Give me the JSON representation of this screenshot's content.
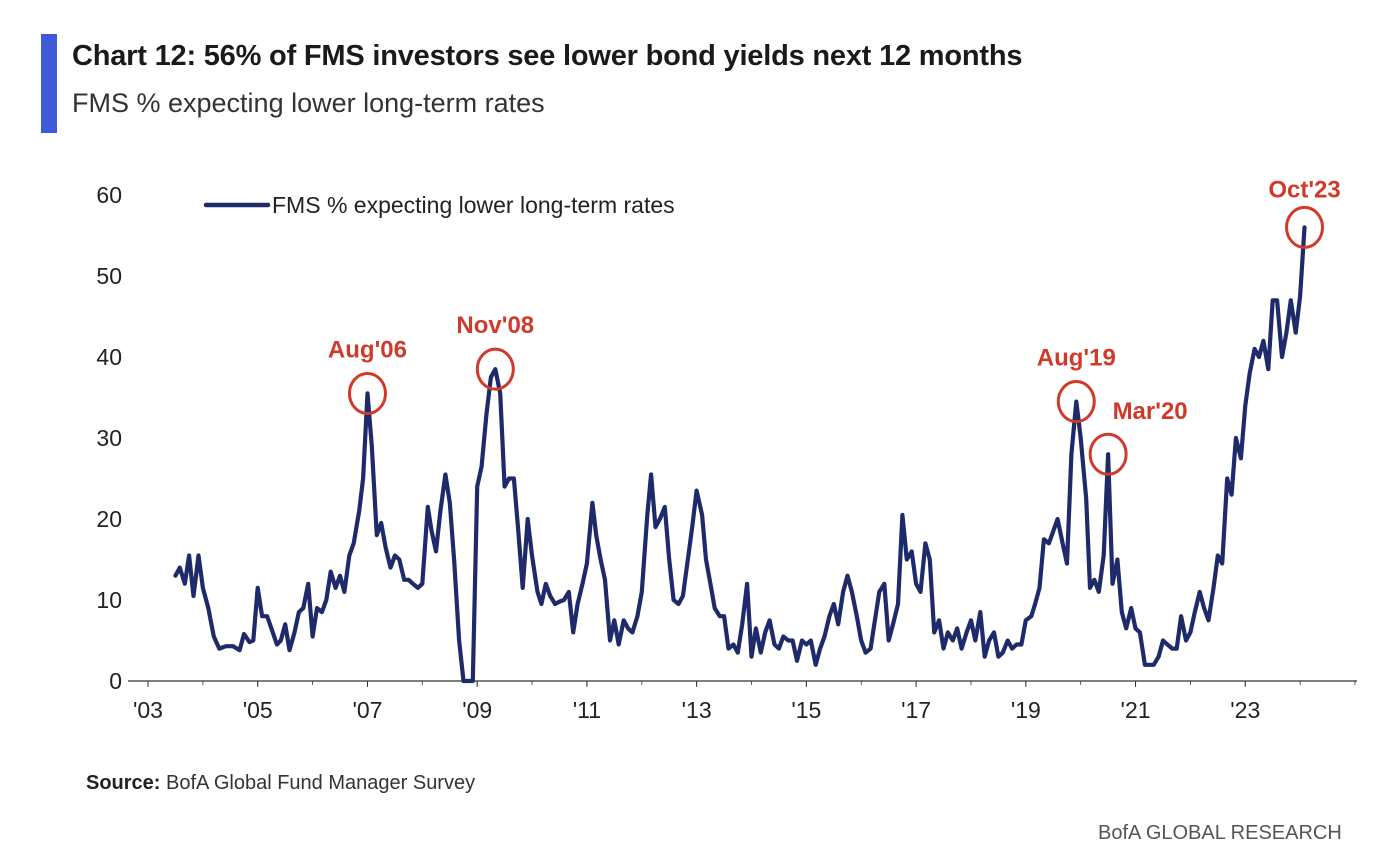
{
  "header": {
    "title": "Chart 12: 56% of FMS investors see lower bond yields next 12 months",
    "subtitle": "FMS % expecting lower long-term rates",
    "accent_color": "#3d5bd9"
  },
  "footer": {
    "source_label": "Source:",
    "source_text": "BofA Global Fund Manager Survey",
    "brand": "BofA GLOBAL RESEARCH"
  },
  "chart_data": {
    "type": "line",
    "title": "Chart 12: 56% of FMS investors see lower bond yields next 12 months",
    "xlabel": "",
    "ylabel": "",
    "xlim": [
      2003,
      2025
    ],
    "ylim": [
      0,
      60
    ],
    "y_ticks": [
      0,
      10,
      20,
      30,
      40,
      50,
      60
    ],
    "x_ticks": [
      {
        "value": 2003,
        "label": "'03"
      },
      {
        "value": 2005,
        "label": "'05"
      },
      {
        "value": 2007,
        "label": "'07"
      },
      {
        "value": 2009,
        "label": "'09"
      },
      {
        "value": 2011,
        "label": "'11"
      },
      {
        "value": 2013,
        "label": "'13"
      },
      {
        "value": 2015,
        "label": "'15"
      },
      {
        "value": 2017,
        "label": "'17"
      },
      {
        "value": 2019,
        "label": "'19"
      },
      {
        "value": 2021,
        "label": "'21"
      },
      {
        "value": 2023,
        "label": "'23"
      }
    ],
    "grid": false,
    "legend": {
      "position": "top-left",
      "entries": [
        "FMS % expecting lower long-term rates"
      ]
    },
    "series": [
      {
        "name": "FMS % expecting lower long-term rates",
        "color": "#1f2a6b",
        "points": [
          [
            2003.5,
            13
          ],
          [
            2003.58,
            14
          ],
          [
            2003.67,
            12
          ],
          [
            2003.75,
            15.5
          ],
          [
            2003.83,
            10.5
          ],
          [
            2003.92,
            15.5
          ],
          [
            2004.0,
            11.5
          ],
          [
            2004.1,
            9
          ],
          [
            2004.2,
            5.5
          ],
          [
            2004.3,
            4
          ],
          [
            2004.42,
            4.3
          ],
          [
            2004.55,
            4.3
          ],
          [
            2004.67,
            3.8
          ],
          [
            2004.75,
            5.8
          ],
          [
            2004.85,
            4.8
          ],
          [
            2004.92,
            5
          ],
          [
            2005.0,
            11.5
          ],
          [
            2005.08,
            8
          ],
          [
            2005.17,
            8
          ],
          [
            2005.25,
            6.5
          ],
          [
            2005.35,
            4.5
          ],
          [
            2005.42,
            5
          ],
          [
            2005.5,
            7
          ],
          [
            2005.58,
            3.8
          ],
          [
            2005.67,
            6
          ],
          [
            2005.75,
            8.5
          ],
          [
            2005.83,
            9
          ],
          [
            2005.92,
            12
          ],
          [
            2006.0,
            5.5
          ],
          [
            2006.08,
            9
          ],
          [
            2006.17,
            8.5
          ],
          [
            2006.25,
            10
          ],
          [
            2006.33,
            13.5
          ],
          [
            2006.42,
            11.5
          ],
          [
            2006.5,
            13
          ],
          [
            2006.58,
            11
          ],
          [
            2006.67,
            15.5
          ],
          [
            2006.75,
            17
          ],
          [
            2006.85,
            21
          ],
          [
            2006.92,
            25
          ],
          [
            2007.0,
            35.5
          ],
          [
            2007.08,
            29
          ],
          [
            2007.17,
            18
          ],
          [
            2007.25,
            19.5
          ],
          [
            2007.33,
            16.5
          ],
          [
            2007.42,
            14
          ],
          [
            2007.5,
            15.5
          ],
          [
            2007.58,
            15
          ],
          [
            2007.67,
            12.5
          ],
          [
            2007.75,
            12.5
          ],
          [
            2007.83,
            12
          ],
          [
            2007.92,
            11.5
          ],
          [
            2008.0,
            12
          ],
          [
            2008.1,
            21.5
          ],
          [
            2008.17,
            18.5
          ],
          [
            2008.25,
            16
          ],
          [
            2008.33,
            21
          ],
          [
            2008.42,
            25.5
          ],
          [
            2008.5,
            22
          ],
          [
            2008.58,
            15
          ],
          [
            2008.67,
            5
          ],
          [
            2008.75,
            0
          ],
          [
            2008.83,
            0
          ],
          [
            2008.92,
            0
          ],
          [
            2009.0,
            24
          ],
          [
            2009.08,
            26.5
          ],
          [
            2009.17,
            33
          ],
          [
            2009.25,
            37.5
          ],
          [
            2009.33,
            38.5
          ],
          [
            2009.42,
            35.5
          ],
          [
            2009.5,
            24
          ],
          [
            2009.58,
            25
          ],
          [
            2009.67,
            25
          ],
          [
            2009.75,
            18.5
          ],
          [
            2009.83,
            11.5
          ],
          [
            2009.92,
            20
          ],
          [
            2010.0,
            15.5
          ],
          [
            2010.1,
            11
          ],
          [
            2010.17,
            9.5
          ],
          [
            2010.25,
            12
          ],
          [
            2010.33,
            10.5
          ],
          [
            2010.42,
            9.5
          ],
          [
            2010.5,
            9.8
          ],
          [
            2010.58,
            10
          ],
          [
            2010.67,
            11
          ],
          [
            2010.75,
            6
          ],
          [
            2010.83,
            9.5
          ],
          [
            2010.92,
            12
          ],
          [
            2011.0,
            14.5
          ],
          [
            2011.1,
            22
          ],
          [
            2011.17,
            18
          ],
          [
            2011.25,
            15
          ],
          [
            2011.33,
            12.5
          ],
          [
            2011.42,
            5
          ],
          [
            2011.5,
            7.5
          ],
          [
            2011.58,
            4.5
          ],
          [
            2011.67,
            7.5
          ],
          [
            2011.75,
            6.5
          ],
          [
            2011.83,
            6
          ],
          [
            2011.92,
            8
          ],
          [
            2012.0,
            11
          ],
          [
            2012.1,
            20.5
          ],
          [
            2012.17,
            25.5
          ],
          [
            2012.25,
            19
          ],
          [
            2012.33,
            20
          ],
          [
            2012.42,
            21.5
          ],
          [
            2012.5,
            15
          ],
          [
            2012.58,
            10
          ],
          [
            2012.67,
            9.5
          ],
          [
            2012.75,
            10.5
          ],
          [
            2012.83,
            14.5
          ],
          [
            2012.92,
            19
          ],
          [
            2013.0,
            23.5
          ],
          [
            2013.1,
            20.5
          ],
          [
            2013.17,
            15
          ],
          [
            2013.25,
            12
          ],
          [
            2013.33,
            9
          ],
          [
            2013.42,
            8
          ],
          [
            2013.5,
            8
          ],
          [
            2013.58,
            4
          ],
          [
            2013.67,
            4.5
          ],
          [
            2013.75,
            3.5
          ],
          [
            2013.83,
            7
          ],
          [
            2013.92,
            12
          ],
          [
            2014.0,
            3
          ],
          [
            2014.08,
            6.5
          ],
          [
            2014.17,
            3.5
          ],
          [
            2014.25,
            6
          ],
          [
            2014.33,
            7.5
          ],
          [
            2014.42,
            4.5
          ],
          [
            2014.5,
            4
          ],
          [
            2014.58,
            5.5
          ],
          [
            2014.67,
            5
          ],
          [
            2014.75,
            5
          ],
          [
            2014.83,
            2.5
          ],
          [
            2014.92,
            5
          ],
          [
            2015.0,
            4.5
          ],
          [
            2015.08,
            5
          ],
          [
            2015.17,
            2
          ],
          [
            2015.25,
            4
          ],
          [
            2015.33,
            5.5
          ],
          [
            2015.42,
            8
          ],
          [
            2015.5,
            9.5
          ],
          [
            2015.58,
            7
          ],
          [
            2015.67,
            11
          ],
          [
            2015.75,
            13
          ],
          [
            2015.83,
            11
          ],
          [
            2015.92,
            8
          ],
          [
            2016.0,
            5
          ],
          [
            2016.08,
            3.5
          ],
          [
            2016.17,
            4
          ],
          [
            2016.25,
            7.5
          ],
          [
            2016.33,
            11
          ],
          [
            2016.42,
            12
          ],
          [
            2016.5,
            5
          ],
          [
            2016.58,
            7
          ],
          [
            2016.67,
            9.5
          ],
          [
            2016.75,
            20.5
          ],
          [
            2016.83,
            15
          ],
          [
            2016.92,
            16
          ],
          [
            2017.0,
            12
          ],
          [
            2017.08,
            11
          ],
          [
            2017.17,
            17
          ],
          [
            2017.25,
            15
          ],
          [
            2017.33,
            6
          ],
          [
            2017.42,
            7.5
          ],
          [
            2017.5,
            4
          ],
          [
            2017.58,
            6
          ],
          [
            2017.67,
            5
          ],
          [
            2017.75,
            6.5
          ],
          [
            2017.83,
            4
          ],
          [
            2017.92,
            6
          ],
          [
            2018.0,
            7.5
          ],
          [
            2018.08,
            5
          ],
          [
            2018.17,
            8.5
          ],
          [
            2018.25,
            3
          ],
          [
            2018.33,
            5
          ],
          [
            2018.42,
            6
          ],
          [
            2018.5,
            3
          ],
          [
            2018.58,
            3.5
          ],
          [
            2018.67,
            5
          ],
          [
            2018.75,
            4
          ],
          [
            2018.83,
            4.5
          ],
          [
            2018.92,
            4.5
          ],
          [
            2019.0,
            7.5
          ],
          [
            2019.1,
            8
          ],
          [
            2019.17,
            9.5
          ],
          [
            2019.25,
            11.5
          ],
          [
            2019.33,
            17.5
          ],
          [
            2019.42,
            17
          ],
          [
            2019.5,
            18.5
          ],
          [
            2019.58,
            20
          ],
          [
            2019.67,
            17
          ],
          [
            2019.75,
            14.5
          ],
          [
            2019.83,
            28
          ],
          [
            2019.92,
            34.5
          ],
          [
            2020.0,
            30
          ],
          [
            2020.1,
            22.5
          ],
          [
            2020.17,
            11.5
          ],
          [
            2020.25,
            12.5
          ],
          [
            2020.33,
            11
          ],
          [
            2020.42,
            15.5
          ],
          [
            2020.5,
            28
          ],
          [
            2020.58,
            12
          ],
          [
            2020.67,
            15
          ],
          [
            2020.75,
            8.5
          ],
          [
            2020.83,
            6.5
          ],
          [
            2020.92,
            9
          ],
          [
            2021.0,
            6.5
          ],
          [
            2021.08,
            6
          ],
          [
            2021.17,
            2
          ],
          [
            2021.25,
            2
          ],
          [
            2021.33,
            2
          ],
          [
            2021.42,
            3
          ],
          [
            2021.5,
            5
          ],
          [
            2021.58,
            4.5
          ],
          [
            2021.67,
            4
          ],
          [
            2021.75,
            4
          ],
          [
            2021.83,
            8
          ],
          [
            2021.92,
            5
          ],
          [
            2022.0,
            6
          ],
          [
            2022.08,
            8.5
          ],
          [
            2022.17,
            11
          ],
          [
            2022.25,
            9
          ],
          [
            2022.33,
            7.5
          ],
          [
            2022.42,
            11.5
          ],
          [
            2022.5,
            15.5
          ],
          [
            2022.58,
            14.5
          ],
          [
            2022.67,
            25
          ],
          [
            2022.75,
            23
          ],
          [
            2022.83,
            30
          ],
          [
            2022.92,
            27.5
          ],
          [
            2023.0,
            34
          ],
          [
            2023.08,
            38
          ],
          [
            2023.17,
            41
          ],
          [
            2023.25,
            40
          ],
          [
            2023.33,
            42
          ],
          [
            2023.42,
            38.5
          ],
          [
            2023.5,
            47
          ],
          [
            2023.58,
            47
          ],
          [
            2023.67,
            40
          ],
          [
            2023.75,
            43
          ],
          [
            2023.83,
            47
          ],
          [
            2023.92,
            43
          ],
          [
            2024.0,
            47.5
          ],
          [
            2024.08,
            56
          ]
        ]
      }
    ],
    "annotations": [
      {
        "label": "Aug'06",
        "x": 2007.0,
        "y": 35.5
      },
      {
        "label": "Nov'08",
        "x": 2009.33,
        "y": 38.5
      },
      {
        "label": "Aug'19",
        "x": 2019.92,
        "y": 34.5
      },
      {
        "label": "Mar'20",
        "x": 2020.5,
        "y": 28
      },
      {
        "label": "Oct'23",
        "x": 2024.08,
        "y": 56
      }
    ],
    "annotation_color": "#d03a2a"
  }
}
